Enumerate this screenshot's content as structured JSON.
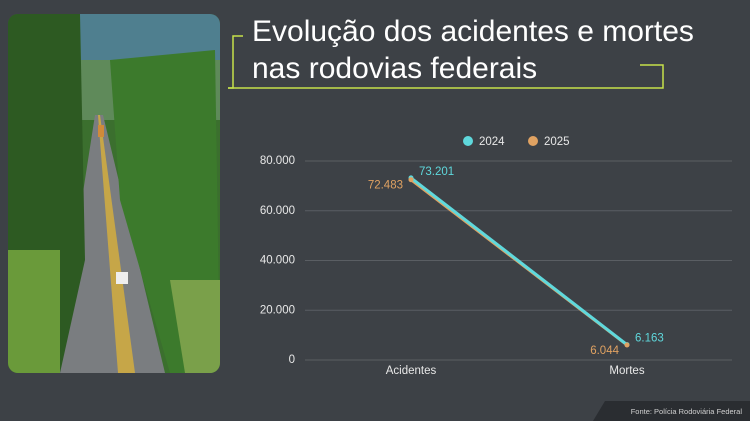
{
  "chart_data": {
    "type": "line",
    "title": [
      "Evolução dos acidentes e mortes",
      "nas rodovias federais"
    ],
    "categories": [
      "Acidentes",
      "Mortes"
    ],
    "series": [
      {
        "name": "2024",
        "color": "#5fd8dc",
        "values": [
          73201,
          6163
        ],
        "value_labels": [
          "73.201",
          "6.163"
        ]
      },
      {
        "name": "2025",
        "color": "#e0a262",
        "values": [
          72483,
          6044
        ],
        "value_labels": [
          "72.483",
          "6.044"
        ]
      }
    ],
    "ylim": [
      0,
      80000
    ],
    "yticks": [
      0,
      {
        "value": 20000,
        "label": "20.000"
      },
      {
        "value": 40000,
        "label": "40.000"
      },
      {
        "value": 60000,
        "label": "60.000"
      },
      {
        "value": 80000,
        "label": "80.000"
      }
    ],
    "grid": true,
    "source": "Fonte: Polícia Rodoviária Federal"
  }
}
